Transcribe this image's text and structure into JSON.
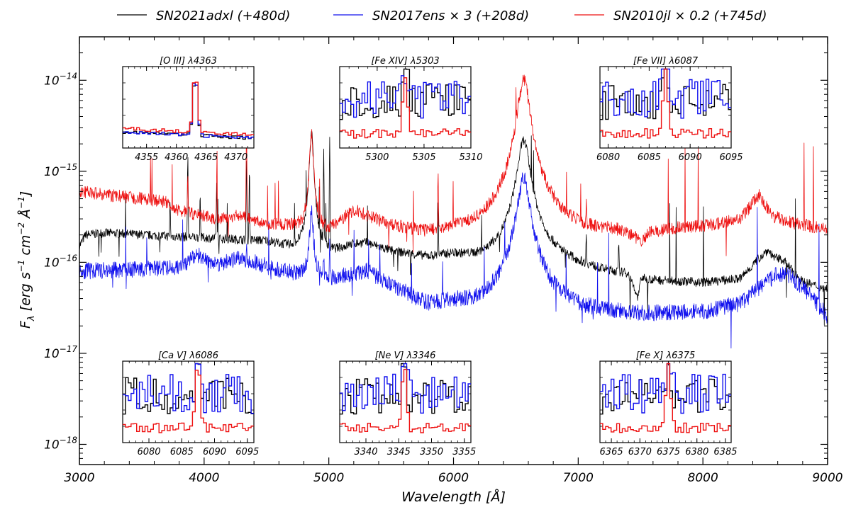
{
  "chart_data": {
    "type": "line",
    "title": "",
    "xlabel": "Wavelength [Å]",
    "ylabel": "F_λ [erg s⁻¹ cm⁻² Å⁻¹]",
    "ylabel_parts": {
      "F": "F",
      "lambda_sub": "λ",
      "unit_main": " [erg s",
      "exp1": "−1",
      "cm": " cm",
      "exp2": "−2",
      "A": " Å",
      "exp3": "−1",
      "close": "]"
    },
    "xlim": [
      3000,
      9000
    ],
    "ylim": [
      6e-19,
      3e-14
    ],
    "yscale": "log",
    "x_ticks": [
      3000,
      4000,
      5000,
      6000,
      7000,
      8000,
      9000
    ],
    "x_tick_labels": [
      "3000",
      "4000",
      "5000",
      "6000",
      "7000",
      "8000",
      "9000"
    ],
    "y_ticks": [
      1e-18,
      1e-17,
      1e-16,
      1e-15,
      1e-14
    ],
    "y_tick_labels": [
      {
        "base": "10",
        "exp": "−18"
      },
      {
        "base": "10",
        "exp": "−17"
      },
      {
        "base": "10",
        "exp": "−16"
      },
      {
        "base": "10",
        "exp": "−15"
      },
      {
        "base": "10",
        "exp": "−14"
      }
    ],
    "legend": {
      "placement": "top-outside",
      "entries": [
        {
          "label": "SN2021adxl (+480d)",
          "color": "#000000"
        },
        {
          "label": "SN2017ens × 3  (+208d)",
          "color": "#1010ee"
        },
        {
          "label": "SN2010jl × 0.2  (+745d)",
          "color": "#ee1010"
        }
      ]
    },
    "series": [
      {
        "name": "SN2021adxl (+480d)",
        "color": "#000000",
        "continuum": [
          [
            3000,
            1.5e-16
          ],
          [
            3050,
            2e-16
          ],
          [
            3200,
            2.1e-16
          ],
          [
            3500,
            2e-16
          ],
          [
            3800,
            1.9e-16
          ],
          [
            4000,
            1.85e-16
          ],
          [
            4300,
            1.75e-16
          ],
          [
            4500,
            1.7e-16
          ],
          [
            4700,
            1.4e-16
          ],
          [
            5000,
            1.2e-16
          ],
          [
            5200,
            1.55e-16
          ],
          [
            5300,
            1.6e-16
          ],
          [
            5500,
            1.3e-16
          ],
          [
            5800,
            1.1e-16
          ],
          [
            6000,
            1.15e-16
          ],
          [
            6200,
            1e-16
          ],
          [
            6400,
            1.05e-16
          ],
          [
            6500,
            1.2e-16
          ],
          [
            6800,
            1e-16
          ],
          [
            7000,
            8.5e-17
          ],
          [
            7200,
            7.5e-17
          ],
          [
            7400,
            7e-17
          ],
          [
            7480,
            3.5e-17
          ],
          [
            7500,
            6.2e-17
          ],
          [
            7700,
            6e-17
          ],
          [
            8000,
            5.8e-17
          ],
          [
            8300,
            6.5e-17
          ],
          [
            8450,
            1.1e-16
          ],
          [
            8520,
            1.35e-16
          ],
          [
            8580,
            1.1e-16
          ],
          [
            8650,
            1.05e-16
          ],
          [
            8700,
            8.5e-17
          ],
          [
            8800,
            6e-17
          ],
          [
            9000,
            5e-17
          ]
        ],
        "lines": [
          [
            3727,
            5e-16
          ],
          [
            3869,
            1.4e-15
          ],
          [
            3968,
            6e-16
          ],
          [
            4101,
            8e-16
          ],
          [
            4340,
            1.3e-15
          ],
          [
            4363,
            1.1e-15
          ],
          [
            4861,
            2.7e-15
          ],
          [
            4959,
            1.6e-15
          ],
          [
            5007,
            2.4e-15
          ],
          [
            5876,
            5e-16
          ],
          [
            6563,
            2.2e-15
          ],
          [
            7065,
            2e-16
          ],
          [
            7325,
            1.5e-16
          ]
        ],
        "noise": 0.05,
        "seed": 7
      },
      {
        "name": "SN2017ens × 3  (+208d)",
        "color": "#1010ee",
        "continuum": [
          [
            3000,
            8e-17
          ],
          [
            3300,
            8.2e-17
          ],
          [
            3600,
            8.5e-17
          ],
          [
            3800,
            8.8e-17
          ],
          [
            3950,
            1.2e-16
          ],
          [
            4100,
            9.5e-17
          ],
          [
            4300,
            1.1e-16
          ],
          [
            4500,
            9e-17
          ],
          [
            4700,
            7.5e-17
          ],
          [
            4800,
            7e-17
          ],
          [
            5000,
            6.5e-17
          ],
          [
            5300,
            8e-17
          ],
          [
            5500,
            5.5e-17
          ],
          [
            5800,
            3.3e-17
          ],
          [
            6000,
            3.5e-17
          ],
          [
            6200,
            3.2e-17
          ],
          [
            6400,
            4e-17
          ],
          [
            6500,
            6e-17
          ],
          [
            6750,
            3.6e-17
          ],
          [
            7000,
            2.8e-17
          ],
          [
            7500,
            2.6e-17
          ],
          [
            8000,
            2.8e-17
          ],
          [
            8300,
            3.5e-17
          ],
          [
            8600,
            7.5e-17
          ],
          [
            8700,
            7e-17
          ],
          [
            8850,
            4.5e-17
          ],
          [
            9000,
            2.5e-17
          ]
        ],
        "lines": [
          [
            3869,
            1.2e-16
          ],
          [
            4340,
            1.8e-16
          ],
          [
            4861,
            3.6e-16
          ],
          [
            4959,
            1.1e-16
          ],
          [
            5007,
            1.6e-16
          ],
          [
            6563,
            8.5e-16
          ]
        ],
        "noise": 0.09,
        "seed": 11
      },
      {
        "name": "SN2010jl × 0.2  (+745d)",
        "color": "#ee1010",
        "continuum": [
          [
            3000,
            6e-16
          ],
          [
            3200,
            5.5e-16
          ],
          [
            3500,
            5e-16
          ],
          [
            3700,
            4.5e-16
          ],
          [
            3750,
            3.8e-16
          ],
          [
            3900,
            3.4e-16
          ],
          [
            4100,
            3e-16
          ],
          [
            4300,
            3.2e-16
          ],
          [
            4500,
            2.6e-16
          ],
          [
            4700,
            2.4e-16
          ],
          [
            4800,
            2.2e-16
          ],
          [
            5000,
            2.1e-16
          ],
          [
            5200,
            3.6e-16
          ],
          [
            5300,
            3.2e-16
          ],
          [
            5500,
            2.4e-16
          ],
          [
            5800,
            1.9e-16
          ],
          [
            6000,
            2e-16
          ],
          [
            6200,
            1.8e-16
          ],
          [
            6400,
            2e-16
          ],
          [
            6800,
            2e-16
          ],
          [
            7000,
            1.9e-16
          ],
          [
            7300,
            2e-16
          ],
          [
            7520,
            1.5e-16
          ],
          [
            7560,
            1.9e-16
          ],
          [
            7800,
            2.3e-16
          ],
          [
            8000,
            2.4e-16
          ],
          [
            8300,
            2.9e-16
          ],
          [
            8450,
            5.5e-16
          ],
          [
            8550,
            3.2e-16
          ],
          [
            8700,
            2.7e-16
          ],
          [
            8900,
            2.4e-16
          ],
          [
            9000,
            2.3e-16
          ]
        ],
        "lines": [
          [
            3869,
            1e-15
          ],
          [
            4101,
            1e-15
          ],
          [
            4340,
            3.2e-15
          ],
          [
            4861,
            2.6e-15
          ],
          [
            5876,
            9e-16
          ],
          [
            6563,
            1e-14
          ],
          [
            7065,
            3.5e-16
          ]
        ],
        "noise": 0.07,
        "seed": 23
      }
    ],
    "insets": [
      {
        "title": "[O III] λ4363",
        "xlim": [
          4351,
          4373
        ],
        "ticks": [
          4355,
          4360,
          4365,
          4370
        ],
        "center": 4363.2,
        "peak_frac": 0.95,
        "style": "narrow-bump",
        "position": "top-left"
      },
      {
        "title": "[Fe XIV] λ5303",
        "xlim": [
          5296,
          5310
        ],
        "ticks": [
          5300,
          5305,
          5310
        ],
        "center": 5303,
        "peak_frac": 0.85,
        "style": "noisy",
        "position": "top-center"
      },
      {
        "title": "[Fe VII] λ6087",
        "xlim": [
          6079,
          6095
        ],
        "ticks": [
          6080,
          6085,
          6090,
          6095
        ],
        "center": 6087,
        "peak_frac": 0.95,
        "style": "noisy-peak",
        "position": "top-right"
      },
      {
        "title": "[Ca V] λ6086",
        "xlim": [
          6076,
          6096
        ],
        "ticks": [
          6080,
          6085,
          6090,
          6095
        ],
        "center": 6087.5,
        "peak_frac": 0.9,
        "style": "noisy-peak",
        "position": "bottom-left"
      },
      {
        "title": "[Ne V] λ3346",
        "xlim": [
          3336,
          3356
        ],
        "ticks": [
          3340,
          3345,
          3350,
          3355
        ],
        "center": 3345.8,
        "peak_frac": 0.9,
        "style": "noisy-peak",
        "position": "bottom-center"
      },
      {
        "title": "[Fe X] λ6375",
        "xlim": [
          6363,
          6386
        ],
        "ticks": [
          6365,
          6370,
          6375,
          6380,
          6385
        ],
        "center": 6375,
        "peak_frac": 0.95,
        "style": "noisy-peak",
        "position": "bottom-right"
      }
    ]
  }
}
